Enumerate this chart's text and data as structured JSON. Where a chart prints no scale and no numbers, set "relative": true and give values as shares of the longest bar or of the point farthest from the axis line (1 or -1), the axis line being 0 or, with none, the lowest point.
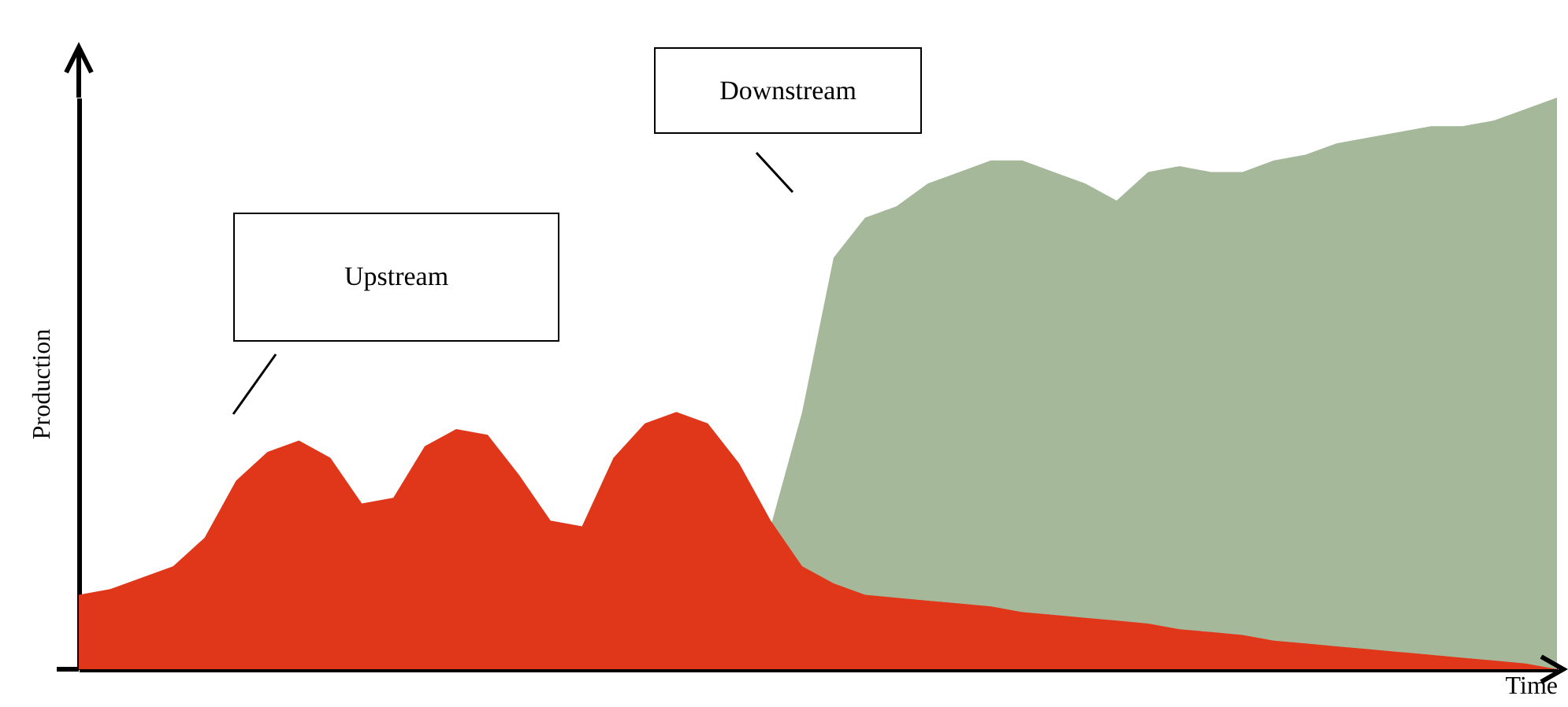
{
  "chart_data": {
    "type": "area",
    "relative": true,
    "xlabel": "Time",
    "ylabel": "Production",
    "annotations": [
      "Downstream",
      "Upstream"
    ],
    "categories": [
      null,
      null,
      null,
      null,
      null,
      null,
      null,
      null,
      null,
      null,
      null,
      null,
      null,
      null,
      null,
      null,
      null,
      null,
      null,
      null,
      null,
      null,
      null,
      null,
      null,
      null,
      null,
      null,
      null,
      null,
      null,
      null,
      null,
      null,
      null,
      null,
      null,
      null,
      null,
      null,
      null,
      null,
      null,
      null,
      null,
      null,
      null,
      null
    ],
    "series": [
      {
        "color": "#a6b89a",
        "values": [
          null,
          null,
          null,
          null,
          null,
          null,
          null,
          null,
          null,
          null,
          null,
          null,
          null,
          null,
          null,
          null,
          null,
          null,
          null,
          null,
          null,
          null,
          0.25,
          0.45,
          0.72,
          0.79,
          0.81,
          0.85,
          0.87,
          0.89,
          0.89,
          0.87,
          0.85,
          0.82,
          0.87,
          0.88,
          0.87,
          0.87,
          0.89,
          0.9,
          0.92,
          0.93,
          0.94,
          0.95,
          0.95,
          0.96,
          0.98,
          1.0
        ]
      },
      {
        "color": "#e0371a",
        "values": [
          0.13,
          0.14,
          0.16,
          0.18,
          0.23,
          0.33,
          0.38,
          0.4,
          0.37,
          0.29,
          0.3,
          0.39,
          0.42,
          0.41,
          0.34,
          0.26,
          0.25,
          0.37,
          0.43,
          0.45,
          0.43,
          0.36,
          0.26,
          0.18,
          0.15,
          0.13,
          0.125,
          0.12,
          0.115,
          0.11,
          0.1,
          0.095,
          0.09,
          0.085,
          0.08,
          0.07,
          0.065,
          0.06,
          0.05,
          0.045,
          0.04,
          0.035,
          0.03,
          0.025,
          0.02,
          0.015,
          0.01,
          0
        ]
      }
    ]
  }
}
